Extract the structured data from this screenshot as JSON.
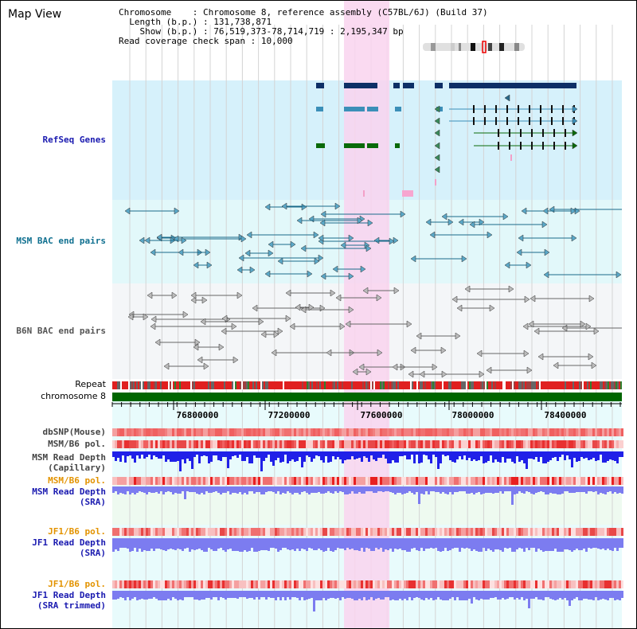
{
  "title": "Map View",
  "info": {
    "chromosome_label": "Chromosome",
    "chromosome_value": "Chromosome 8, reference assembly (C57BL/6J) (Build 37)",
    "length_label": "Length (b.p.)",
    "length_value": "131,738,871",
    "show_label": "Show (b.p.)",
    "show_value": "76,519,373-78,714,719 : 2,195,347 bp",
    "coverage_label": "Read coverage check span",
    "coverage_value": "10,000"
  },
  "tracks": {
    "refseq": "RefSeq Genes",
    "msm_bac": "MSM BAC end pairs",
    "b6n_bac": "B6N BAC end pairs",
    "repeat": "Repeat",
    "chromosome": "chromosome 8",
    "dbsnp": "dbSNP(Mouse)",
    "msm_b6_pol_1": "MSM/B6 pol.",
    "msm_depth_cap_1": "MSM Read Depth",
    "msm_depth_cap_2": "(Capillary)",
    "msm_b6_pol_2": "MSM/B6 pol.",
    "msm_depth_sra_1": "MSM Read Depth",
    "msm_depth_sra_2": "(SRA)",
    "jf1_b6_pol_1": "JF1/B6 pol.",
    "jf1_depth_sra_1": "JF1 Read Depth",
    "jf1_depth_sra_2": "(SRA)",
    "jf1_b6_pol_2": "JF1/B6 pol.",
    "jf1_depth_trim_1": "JF1 Read Depth",
    "jf1_depth_trim_2": "(SRA trimmed)"
  },
  "axis": {
    "ticks": [
      "76800000",
      "77200000",
      "77600000",
      "78000000",
      "78400000"
    ]
  },
  "colors": {
    "highlight": "#f9d4ef",
    "refseq_bg": "#d6f1fb",
    "msm_bg": "#e2f8fa",
    "b6n_bg": "#f4f6f8",
    "gene_dark": "#0d2f66",
    "gene_teal": "#3b8fb8",
    "gene_green": "#0a6a0a",
    "chromosome": "#006600",
    "depth_dark": "#2020e8",
    "depth_light": "#7c7cf0"
  }
}
